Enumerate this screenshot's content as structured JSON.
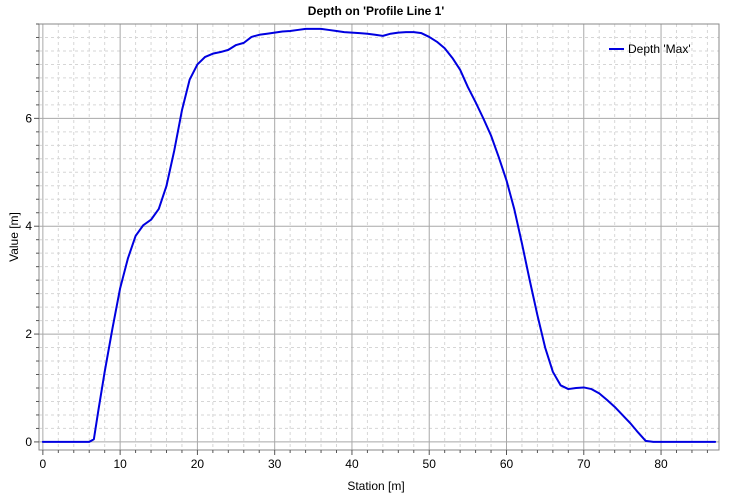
{
  "chart_data": {
    "type": "line",
    "title": "Depth on 'Profile Line 1'",
    "xlabel": "Station [m]",
    "ylabel": "Value [m]",
    "xlim": [
      -0.5,
      87.5
    ],
    "ylim": [
      -0.15,
      7.75
    ],
    "x_ticks": [
      0,
      10,
      20,
      30,
      40,
      50,
      60,
      70,
      80
    ],
    "y_ticks": [
      0,
      2,
      4,
      6
    ],
    "grid": true,
    "legend_position": "top-right",
    "series_color": "#0000e0",
    "series": [
      {
        "name": "Depth 'Max'",
        "x": [
          0,
          2,
          4,
          6,
          6.6,
          7.2,
          8,
          9,
          10,
          11,
          12,
          13,
          14,
          15,
          16,
          17,
          18,
          19,
          20,
          21,
          22,
          23,
          24,
          25,
          26,
          27,
          28,
          29,
          30,
          31,
          32,
          33,
          34,
          35,
          36,
          37,
          38,
          39,
          40,
          41,
          42,
          43,
          44,
          45,
          46,
          47,
          48,
          49,
          50,
          51,
          52,
          53,
          54,
          55,
          56,
          57,
          58,
          59,
          60,
          61,
          62,
          63,
          64,
          65,
          66,
          67,
          68,
          69,
          70,
          71,
          72,
          73,
          74,
          75,
          76,
          77,
          78,
          79,
          80,
          82,
          84,
          86,
          87
        ],
        "y": [
          0,
          0,
          0,
          0,
          0.05,
          0.6,
          1.3,
          2.1,
          2.85,
          3.4,
          3.82,
          4.02,
          4.12,
          4.32,
          4.75,
          5.4,
          6.15,
          6.72,
          7.0,
          7.14,
          7.2,
          7.23,
          7.27,
          7.36,
          7.4,
          7.51,
          7.55,
          7.57,
          7.59,
          7.61,
          7.62,
          7.64,
          7.66,
          7.66,
          7.66,
          7.64,
          7.62,
          7.6,
          7.59,
          7.58,
          7.57,
          7.55,
          7.53,
          7.57,
          7.59,
          7.6,
          7.6,
          7.58,
          7.51,
          7.42,
          7.3,
          7.12,
          6.9,
          6.58,
          6.3,
          6.0,
          5.68,
          5.28,
          4.85,
          4.32,
          3.68,
          3.0,
          2.35,
          1.75,
          1.3,
          1.05,
          0.98,
          1.0,
          1.01,
          0.98,
          0.9,
          0.78,
          0.65,
          0.5,
          0.35,
          0.18,
          0.02,
          0,
          0,
          0,
          0,
          0,
          0
        ]
      }
    ]
  }
}
